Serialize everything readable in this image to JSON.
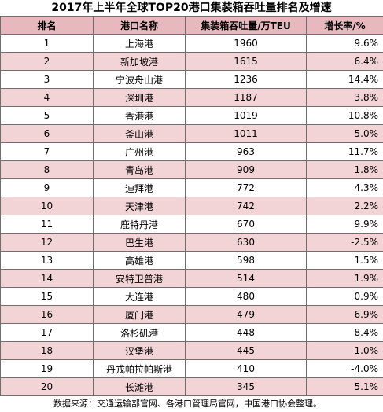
{
  "chart_data": {
    "type": "table",
    "title": "2017年上半年全球TOP20港口集装箱吞吐量排名及增速",
    "columns": [
      "排名",
      "港口名称",
      "集装箱吞吐量/万TEU",
      "增长率/%"
    ],
    "rows": [
      [
        "1",
        "上海港",
        "1960",
        "9.6%"
      ],
      [
        "2",
        "新加坡港",
        "1615",
        "6.4%"
      ],
      [
        "3",
        "宁波舟山港",
        "1236",
        "14.4%"
      ],
      [
        "4",
        "深圳港",
        "1187",
        "3.8%"
      ],
      [
        "5",
        "香港港",
        "1019",
        "10.8%"
      ],
      [
        "6",
        "釜山港",
        "1011",
        "5.0%"
      ],
      [
        "7",
        "广州港",
        "963",
        "11.7%"
      ],
      [
        "8",
        "青岛港",
        "909",
        "1.8%"
      ],
      [
        "9",
        "迪拜港",
        "772",
        "4.3%"
      ],
      [
        "10",
        "天津港",
        "742",
        "2.2%"
      ],
      [
        "11",
        "鹿特丹港",
        "670",
        "9.9%"
      ],
      [
        "12",
        "巴生港",
        "630",
        "-2.5%"
      ],
      [
        "13",
        "高雄港",
        "598",
        "1.5%"
      ],
      [
        "14",
        "安特卫普港",
        "514",
        "1.9%"
      ],
      [
        "15",
        "大连港",
        "480",
        "0.9%"
      ],
      [
        "16",
        "厦门港",
        "479",
        "6.9%"
      ],
      [
        "17",
        "洛杉矶港",
        "448",
        "8.4%"
      ],
      [
        "18",
        "汉堡港",
        "445",
        "1.0%"
      ],
      [
        "19",
        "丹戎帕拉帕斯港",
        "410",
        "-4.0%"
      ],
      [
        "20",
        "长滩港",
        "345",
        "5.1%"
      ]
    ],
    "source_note": "数据来源：交通运输部官网、各港口管理局官网，中国港口协会整理。"
  },
  "colors": {
    "header_bg": "#e7b9be",
    "row_pink": "#f2d3d6",
    "row_white": "#ffffff",
    "border": "#6e6e6e"
  }
}
